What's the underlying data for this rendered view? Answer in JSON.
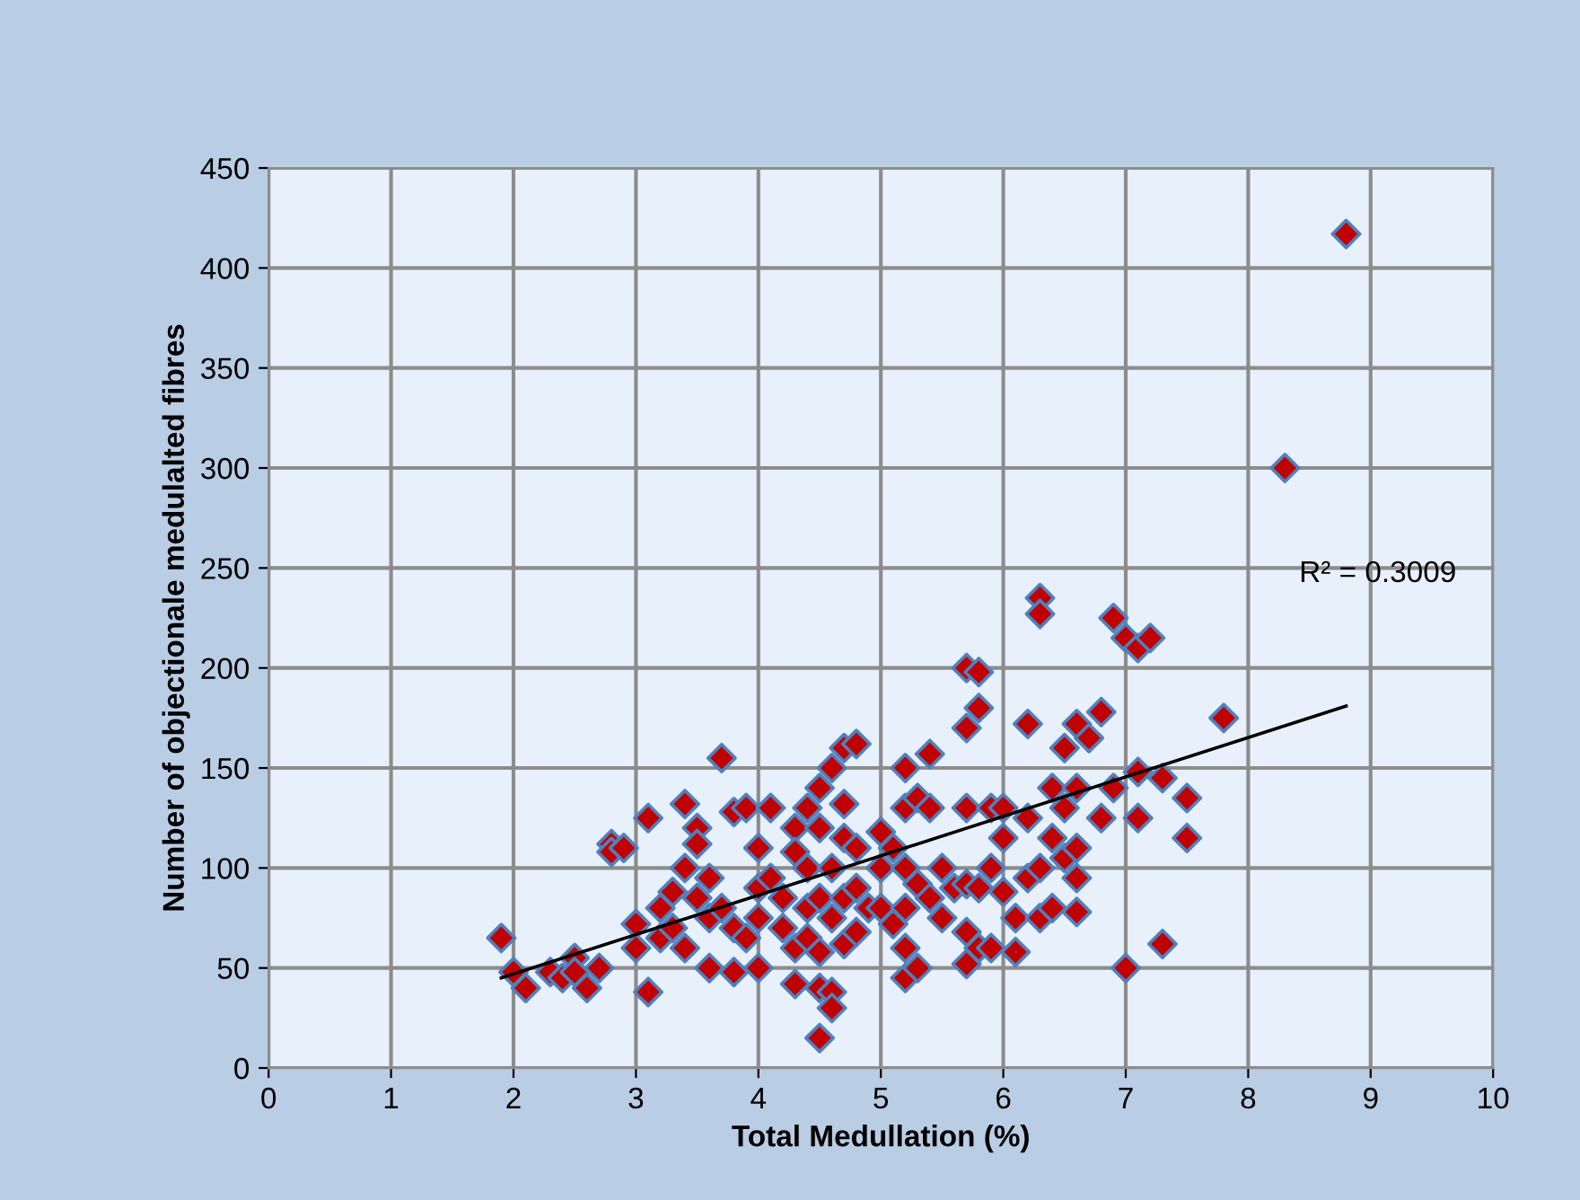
{
  "chart_data": {
    "type": "scatter",
    "xlabel": "Total Medullation (%)",
    "ylabel": "Number of objectionale medulalted fibres",
    "xlim": [
      0,
      10
    ],
    "xticks": [
      0,
      1,
      2,
      3,
      4,
      5,
      6,
      7,
      8,
      9,
      10
    ],
    "ylim": [
      0,
      450
    ],
    "yticks": [
      0,
      50,
      100,
      150,
      200,
      250,
      300,
      350,
      400,
      450
    ],
    "grid": true,
    "marker": "diamond",
    "annotations": [
      "R² = 0.3009"
    ],
    "series": [
      {
        "color": "#c00000",
        "x": [
          1.9,
          2.0,
          2.1,
          2.3,
          2.4,
          2.5,
          2.5,
          2.6,
          2.7,
          2.8,
          2.8,
          2.9,
          3.0,
          3.0,
          3.1,
          3.1,
          3.2,
          3.2,
          3.3,
          3.3,
          3.4,
          3.4,
          3.4,
          3.5,
          3.5,
          3.5,
          3.6,
          3.6,
          3.6,
          3.7,
          3.7,
          3.8,
          3.8,
          3.8,
          3.9,
          3.9,
          4.0,
          4.0,
          4.0,
          4.0,
          4.1,
          4.1,
          4.2,
          4.2,
          4.3,
          4.3,
          4.3,
          4.3,
          4.4,
          4.4,
          4.4,
          4.4,
          4.5,
          4.5,
          4.5,
          4.5,
          4.5,
          4.5,
          4.6,
          4.6,
          4.6,
          4.6,
          4.6,
          4.7,
          4.7,
          4.7,
          4.7,
          4.7,
          4.8,
          4.8,
          4.8,
          4.8,
          4.9,
          5.0,
          5.0,
          5.0,
          5.1,
          5.1,
          5.2,
          5.2,
          5.2,
          5.2,
          5.2,
          5.2,
          5.3,
          5.3,
          5.3,
          5.4,
          5.4,
          5.4,
          5.5,
          5.5,
          5.6,
          5.7,
          5.7,
          5.7,
          5.7,
          5.7,
          5.7,
          5.8,
          5.8,
          5.8,
          5.8,
          5.9,
          5.9,
          5.9,
          6.0,
          6.0,
          6.0,
          6.1,
          6.1,
          6.2,
          6.2,
          6.2,
          6.3,
          6.3,
          6.3,
          6.3,
          6.4,
          6.4,
          6.4,
          6.5,
          6.5,
          6.5,
          6.6,
          6.6,
          6.6,
          6.6,
          6.6,
          6.7,
          6.8,
          6.8,
          6.9,
          6.9,
          7.0,
          7.0,
          7.1,
          7.1,
          7.1,
          7.2,
          7.3,
          7.3,
          7.5,
          7.5,
          7.8,
          8.3,
          8.8
        ],
        "values": [
          65,
          48,
          40,
          48,
          45,
          55,
          48,
          40,
          50,
          112,
          108,
          110,
          72,
          60,
          38,
          125,
          80,
          65,
          88,
          70,
          132,
          100,
          60,
          120,
          112,
          85,
          95,
          75,
          50,
          155,
          80,
          128,
          70,
          48,
          130,
          65,
          110,
          90,
          75,
          50,
          130,
          95,
          85,
          70,
          120,
          108,
          60,
          42,
          130,
          100,
          80,
          65,
          140,
          120,
          85,
          58,
          40,
          15,
          150,
          100,
          75,
          38,
          30,
          160,
          132,
          115,
          85,
          62,
          162,
          110,
          90,
          68,
          80,
          118,
          100,
          80,
          110,
          72,
          150,
          130,
          100,
          80,
          60,
          45,
          135,
          92,
          50,
          157,
          130,
          85,
          100,
          75,
          90,
          200,
          170,
          130,
          92,
          68,
          52,
          198,
          180,
          90,
          60,
          130,
          100,
          60,
          130,
          115,
          88,
          75,
          58,
          172,
          125,
          95,
          235,
          227,
          100,
          75,
          140,
          115,
          80,
          160,
          130,
          105,
          172,
          140,
          110,
          95,
          78,
          165,
          178,
          125,
          225,
          140,
          215,
          50,
          210,
          148,
          125,
          215,
          145,
          62,
          135,
          115,
          175,
          300,
          417
        ]
      },
      {
        "type": "line",
        "color": "#000000",
        "marker": "none",
        "x": [
          1.9,
          8.8
        ],
        "values": [
          45,
          181
        ]
      }
    ]
  }
}
